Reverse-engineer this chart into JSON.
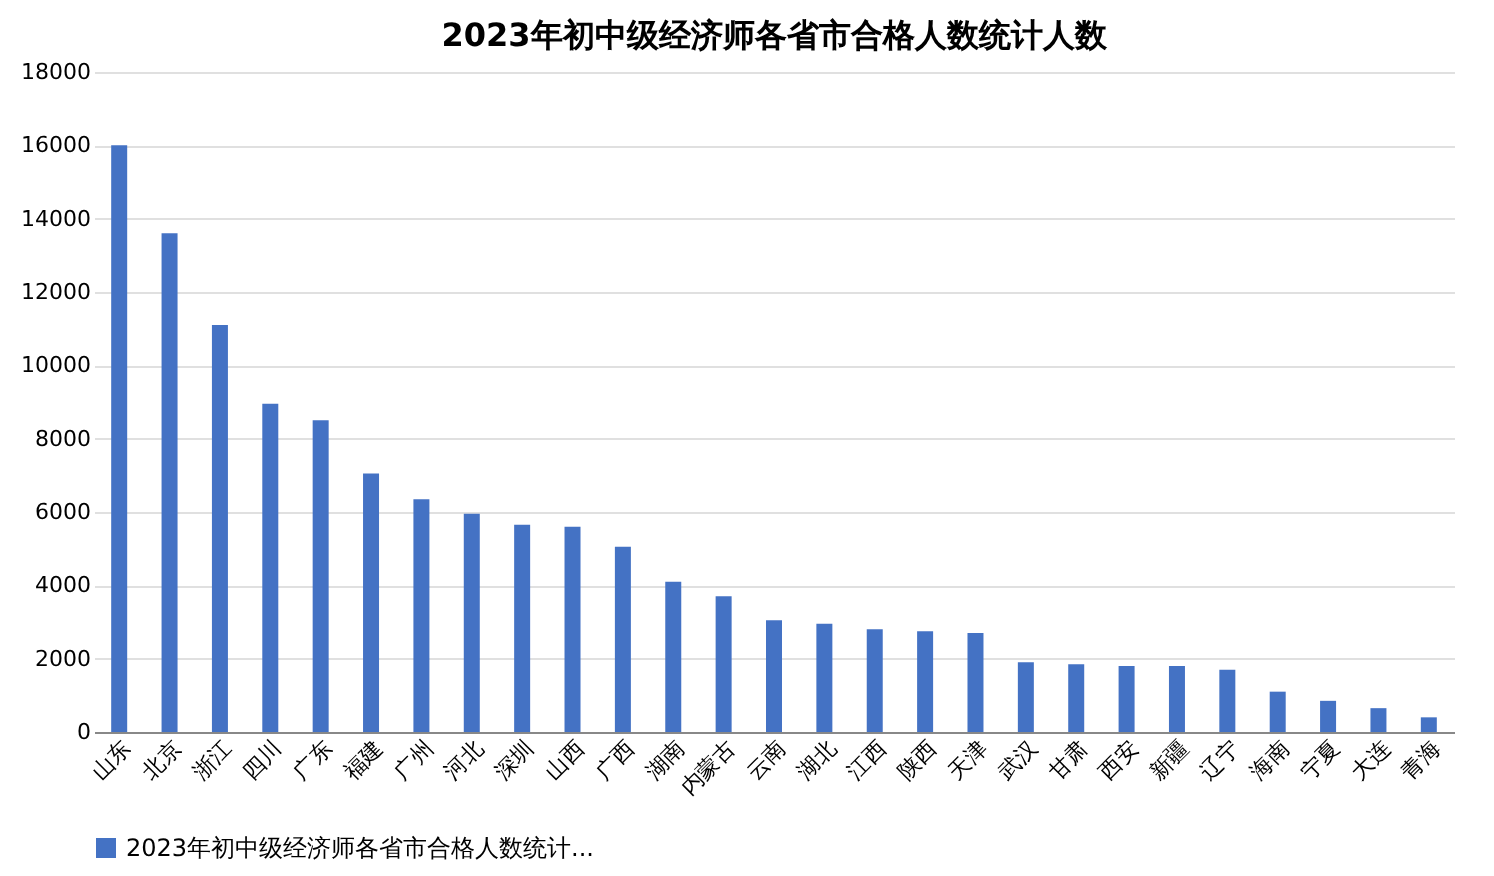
{
  "chart_data": {
    "type": "bar",
    "title": "2023年初中级经济师各省市合格人数统计人数",
    "categories": [
      "山东",
      "北京",
      "浙江",
      "四川",
      "广东",
      "福建",
      "广州",
      "河北",
      "深圳",
      "山西",
      "广西",
      "湖南",
      "内蒙古",
      "云南",
      "湖北",
      "江西",
      "陕西",
      "天津",
      "武汉",
      "甘肃",
      "西安",
      "新疆",
      "辽宁",
      "海南",
      "宁夏",
      "大连",
      "青海"
    ],
    "series": [
      {
        "name": "2023年初中级经济师各省市合格人数统计...",
        "color": "#4472c4",
        "values": [
          16000,
          13600,
          11100,
          8950,
          8500,
          7050,
          6350,
          5950,
          5650,
          5600,
          5050,
          4100,
          3700,
          3050,
          2950,
          2800,
          2750,
          2700,
          1900,
          1850,
          1800,
          1800,
          1700,
          1100,
          850,
          650,
          400
        ]
      }
    ],
    "ylim": [
      0,
      18000
    ],
    "yticks": [
      0,
      2000,
      4000,
      6000,
      8000,
      10000,
      12000,
      14000,
      16000,
      18000
    ],
    "grid": "y",
    "legend": "bottom"
  }
}
